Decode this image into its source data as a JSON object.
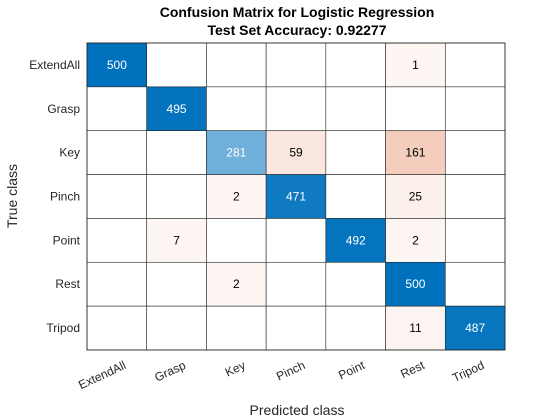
{
  "chart_data": {
    "type": "heatmap",
    "title": "Confusion Matrix for Logistic Regression",
    "subtitle": "Test Set Accuracy: 0.92277",
    "xlabel": "Predicted class",
    "ylabel": "True class",
    "classes": [
      "ExtendAll",
      "Grasp",
      "Key",
      "Pinch",
      "Point",
      "Rest",
      "Tripod"
    ],
    "matrix": [
      [
        500,
        0,
        0,
        0,
        0,
        1,
        0
      ],
      [
        0,
        495,
        0,
        0,
        0,
        0,
        0
      ],
      [
        0,
        0,
        281,
        59,
        0,
        161,
        0
      ],
      [
        0,
        0,
        2,
        471,
        0,
        25,
        0
      ],
      [
        0,
        7,
        0,
        0,
        492,
        2,
        0
      ],
      [
        0,
        0,
        2,
        0,
        0,
        500,
        0
      ],
      [
        0,
        0,
        0,
        0,
        0,
        11,
        487
      ]
    ],
    "diagonal_color": "#0072BD",
    "off_diagonal_color": "#D95319",
    "grid": true
  }
}
